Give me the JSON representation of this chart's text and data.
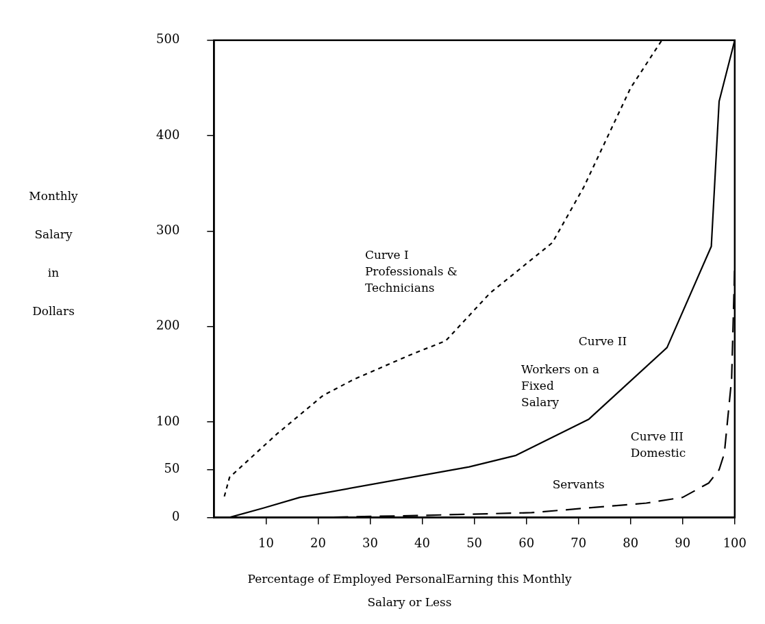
{
  "chart_data": {
    "type": "line",
    "xlabel": "Percentage of Employed PersonalEarning this Monthly Salary or Less",
    "ylabel": "Monthly Salary in Dollars",
    "xlim": [
      0,
      100
    ],
    "xticks": [
      10,
      20,
      30,
      40,
      50,
      60,
      70,
      80,
      90,
      100
    ],
    "ylim": [
      0,
      500
    ],
    "yticks": [
      0,
      50,
      100,
      200,
      300,
      400,
      500
    ],
    "grid": false,
    "legend": false,
    "marker": "none",
    "series": [
      {
        "color": "#000000",
        "line_style": "dashed",
        "x": [
          2,
          3,
          12,
          21,
          27,
          38,
          44.5,
          53,
          65,
          71,
          80,
          86
        ],
        "values": [
          22,
          42,
          87,
          128,
          145,
          171,
          185,
          235,
          288,
          346,
          450,
          500
        ]
      },
      {
        "color": "#000000",
        "line_style": "solid",
        "x": [
          3,
          9.6,
          16.5,
          49,
          58,
          72,
          87,
          95.5,
          97,
          100
        ],
        "values": [
          0,
          10,
          21,
          53,
          65,
          103,
          178,
          284,
          436,
          500
        ]
      },
      {
        "color": "#000000",
        "line_style": "longdash",
        "x": [
          5,
          20,
          39,
          61,
          83,
          90,
          95,
          97,
          98,
          99.4,
          100
        ],
        "values": [
          0,
          0,
          2,
          5,
          15,
          21,
          36,
          50,
          67,
          145,
          265
        ]
      }
    ],
    "annotations": [
      "Curve I\nProfessionals &\nTechnicians",
      "Curve II",
      "Workers on a\nFixed\nSalary",
      "Curve III\nDomestic",
      "Servants"
    ]
  }
}
